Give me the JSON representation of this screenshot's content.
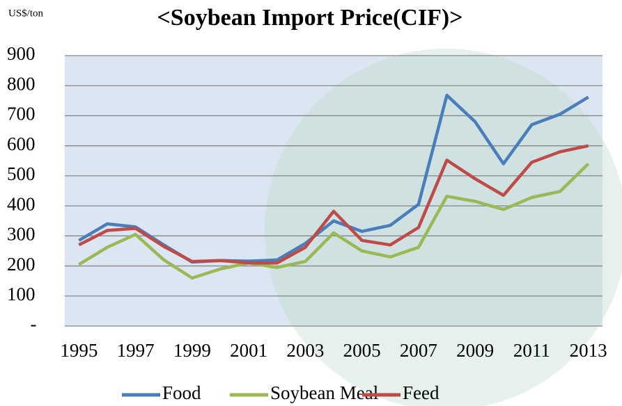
{
  "chart_data": {
    "type": "line",
    "title": "<Soybean Import Price(CIF)>",
    "y_unit": "US$/ton",
    "x": [
      1995,
      1996,
      1997,
      1998,
      1999,
      2000,
      2001,
      2002,
      2003,
      2004,
      2005,
      2006,
      2007,
      2008,
      2009,
      2010,
      2011,
      2012,
      2013
    ],
    "series": [
      {
        "name": "Food",
        "color": "#4a7ebb",
        "values": [
          285,
          340,
          330,
          270,
          213,
          218,
          216,
          220,
          275,
          350,
          315,
          335,
          405,
          768,
          680,
          540,
          670,
          705,
          762
        ]
      },
      {
        "name": "Soybean Meal",
        "color": "#98b954",
        "values": [
          205,
          262,
          305,
          220,
          160,
          190,
          210,
          195,
          215,
          310,
          250,
          230,
          262,
          432,
          415,
          388,
          428,
          448,
          540
        ]
      },
      {
        "name": "Feed",
        "color": "#be4b48",
        "values": [
          270,
          318,
          325,
          265,
          215,
          218,
          210,
          210,
          262,
          382,
          285,
          270,
          328,
          552,
          490,
          435,
          545,
          580,
          600
        ]
      }
    ],
    "xlim": [
      1994.5,
      2013.5
    ],
    "xticks": [
      1995,
      1997,
      1999,
      2001,
      2003,
      2005,
      2007,
      2009,
      2011,
      2013
    ],
    "ylim": [
      0,
      900
    ],
    "yticks": [
      {
        "value": 0,
        "label": "-"
      },
      100,
      200,
      300,
      400,
      500,
      600,
      700,
      800,
      900
    ],
    "grid": true,
    "legend": "bottom"
  }
}
